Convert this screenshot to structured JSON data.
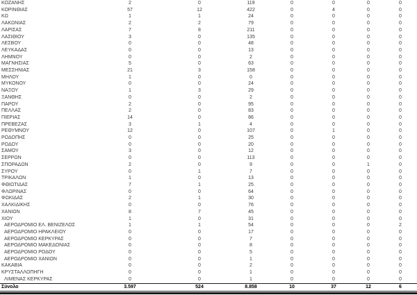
{
  "colors": {
    "background": "#ffffff",
    "text": "#3a3a3a",
    "total_text": "#000000",
    "rule": "#1a1a1a"
  },
  "table": {
    "rows": [
      {
        "name": "ΚΟΖΑΝΗΣ",
        "indent": false,
        "values": [
          "2",
          "0",
          "119",
          "0",
          "0",
          "0",
          "0"
        ]
      },
      {
        "name": "ΚΟΡΙΝΘΙΑΣ",
        "indent": false,
        "values": [
          "57",
          "12",
          "422",
          "0",
          "4",
          "0",
          "0"
        ]
      },
      {
        "name": "ΚΩ",
        "indent": false,
        "values": [
          "1",
          "1",
          "24",
          "0",
          "0",
          "0",
          "0"
        ]
      },
      {
        "name": "ΛΑΚΩΝΙΑΣ",
        "indent": false,
        "values": [
          "2",
          "2",
          "79",
          "0",
          "0",
          "0",
          "0"
        ]
      },
      {
        "name": "ΛΑΡΙΣΑΣ",
        "indent": false,
        "values": [
          "7",
          "8",
          "211",
          "0",
          "0",
          "0",
          "0"
        ]
      },
      {
        "name": "ΛΑΣΙΘΙΟΥ",
        "indent": false,
        "values": [
          "3",
          "0",
          "135",
          "0",
          "0",
          "0",
          "0"
        ]
      },
      {
        "name": "ΛΕΣΒΟΥ",
        "indent": false,
        "values": [
          "0",
          "0",
          "48",
          "0",
          "0",
          "0",
          "0"
        ]
      },
      {
        "name": "ΛΕΥΚΑΔΑΣ",
        "indent": false,
        "values": [
          "0",
          "0",
          "13",
          "0",
          "0",
          "0",
          "0"
        ]
      },
      {
        "name": "ΛΗΜΝΟΥ",
        "indent": false,
        "values": [
          "0",
          "0",
          "2",
          "0",
          "0",
          "0",
          "0"
        ]
      },
      {
        "name": "ΜΑΓΝΗΣΙΑΣ",
        "indent": false,
        "values": [
          "5",
          "0",
          "63",
          "0",
          "0",
          "0",
          "0"
        ]
      },
      {
        "name": "ΜΕΣΣΗΝΙΑΣ",
        "indent": false,
        "values": [
          "21",
          "3",
          "158",
          "0",
          "0",
          "0",
          "0"
        ]
      },
      {
        "name": "ΜΗΛΟΥ",
        "indent": false,
        "values": [
          "1",
          "0",
          "0",
          "0",
          "0",
          "0",
          "0"
        ]
      },
      {
        "name": "ΜΥΚΟΝΟΥ",
        "indent": false,
        "values": [
          "0",
          "0",
          "24",
          "0",
          "0",
          "0",
          "0"
        ]
      },
      {
        "name": "ΝΑΞΟΥ",
        "indent": false,
        "values": [
          "1",
          "3",
          "29",
          "0",
          "0",
          "0",
          "0"
        ]
      },
      {
        "name": "ΞΑΝΘΗΣ",
        "indent": false,
        "values": [
          "0",
          "0",
          "2",
          "0",
          "0",
          "0",
          "0"
        ]
      },
      {
        "name": "ΠΑΡΟΥ",
        "indent": false,
        "values": [
          "2",
          "0",
          "95",
          "0",
          "0",
          "0",
          "0"
        ]
      },
      {
        "name": "ΠΕΛΛΑΣ",
        "indent": false,
        "values": [
          "2",
          "0",
          "83",
          "0",
          "0",
          "0",
          "0"
        ]
      },
      {
        "name": "ΠΙΕΡΙΑΣ",
        "indent": false,
        "values": [
          "14",
          "0",
          "86",
          "0",
          "0",
          "0",
          "0"
        ]
      },
      {
        "name": "ΠΡΕΒΕΖΑΣ",
        "indent": false,
        "values": [
          "3",
          "1",
          "4",
          "0",
          "0",
          "0",
          "0"
        ]
      },
      {
        "name": "ΡΕΘΥΜΝΟΥ",
        "indent": false,
        "values": [
          "12",
          "0",
          "107",
          "0",
          "1",
          "0",
          "0"
        ]
      },
      {
        "name": "ΡΟΔΟΠΗΣ",
        "indent": false,
        "values": [
          "0",
          "0",
          "25",
          "0",
          "0",
          "0",
          "0"
        ]
      },
      {
        "name": "ΡΟΔΟΥ",
        "indent": false,
        "values": [
          "0",
          "0",
          "20",
          "0",
          "0",
          "0",
          "0"
        ]
      },
      {
        "name": "ΣΑΜΟΥ",
        "indent": false,
        "values": [
          "3",
          "0",
          "12",
          "0",
          "0",
          "0",
          "0"
        ]
      },
      {
        "name": "ΣΕΡΡΩΝ",
        "indent": false,
        "values": [
          "0",
          "0",
          "113",
          "0",
          "0",
          "0",
          "0"
        ]
      },
      {
        "name": "ΣΠΟΡΑΔΩΝ",
        "indent": false,
        "values": [
          "2",
          "0",
          "9",
          "0",
          "0",
          "1",
          "0"
        ]
      },
      {
        "name": "ΣΥΡΟΥ",
        "indent": false,
        "values": [
          "0",
          "1",
          "7",
          "0",
          "0",
          "0",
          "0"
        ]
      },
      {
        "name": "ΤΡΙΚΑΛΩΝ",
        "indent": false,
        "values": [
          "1",
          "0",
          "13",
          "0",
          "0",
          "0",
          "0"
        ]
      },
      {
        "name": "ΦΘΙΩΤΙΔΑΣ",
        "indent": false,
        "values": [
          "7",
          "1",
          "25",
          "0",
          "0",
          "0",
          "0"
        ]
      },
      {
        "name": "ΦΛΩΡΙΝΑΣ",
        "indent": false,
        "values": [
          "0",
          "0",
          "64",
          "0",
          "0",
          "0",
          "0"
        ]
      },
      {
        "name": "ΦΩΚΙΔΑΣ",
        "indent": false,
        "values": [
          "2",
          "1",
          "30",
          "0",
          "0",
          "0",
          "0"
        ]
      },
      {
        "name": "ΧΑΛΚΙΔΙΚΗΣ",
        "indent": false,
        "values": [
          "0",
          "0",
          "76",
          "0",
          "0",
          "0",
          "0"
        ]
      },
      {
        "name": "ΧΑΝΙΩΝ",
        "indent": false,
        "values": [
          "8",
          "7",
          "45",
          "0",
          "0",
          "0",
          "0"
        ]
      },
      {
        "name": "ΧΙΟΥ",
        "indent": false,
        "values": [
          "1",
          "0",
          "31",
          "0",
          "0",
          "0",
          "0"
        ]
      },
      {
        "name": "ΑΕΡΟΔΡΟΜΙΟ ΕΛ. ΒΕΝΙΖΕΛΟΣ",
        "indent": true,
        "values": [
          "1",
          "1",
          "54",
          "0",
          "0",
          "0",
          "2"
        ]
      },
      {
        "name": "ΑΕΡΟΔΡΟΜΙΟ ΗΡΑΚΛΕΙΟΥ",
        "indent": true,
        "values": [
          "0",
          "0",
          "17",
          "0",
          "0",
          "0",
          "0"
        ]
      },
      {
        "name": "ΑΕΡΟΔΡΟΜΙΟ ΚΕΡΚΥΡΑΣ",
        "indent": true,
        "values": [
          "0",
          "0",
          "7",
          "0",
          "0",
          "0",
          "0"
        ]
      },
      {
        "name": "ΑΕΡΟΔΡΟΜΙΟ ΜΑΚΕΔΟΝΙΑΣ",
        "indent": true,
        "values": [
          "0",
          "0",
          "8",
          "0",
          "0",
          "0",
          "0"
        ]
      },
      {
        "name": "ΑΕΡΟΔΡΟΜΙΟ ΡΟΔΟΥ",
        "indent": true,
        "values": [
          "0",
          "0",
          "5",
          "0",
          "0",
          "0",
          "0"
        ]
      },
      {
        "name": "ΑΕΡΟΔΡΟΜΙΟ ΧΑΝΙΩΝ",
        "indent": true,
        "values": [
          "0",
          "0",
          "1",
          "0",
          "0",
          "0",
          "0"
        ]
      },
      {
        "name": "ΚΑΚΑΒΙΑ",
        "indent": false,
        "values": [
          "0",
          "0",
          "2",
          "0",
          "0",
          "0",
          "0"
        ]
      },
      {
        "name": "ΚΡΥΣΤΑΛΛΟΠΗΓΗ",
        "indent": false,
        "values": [
          "0",
          "0",
          "1",
          "0",
          "0",
          "0",
          "0"
        ]
      },
      {
        "name": "ΛΙΜΕΝΑΣ ΚΕΡΚΥΡΑΣ",
        "indent": true,
        "values": [
          "0",
          "0",
          "1",
          "0",
          "0",
          "0",
          "0"
        ]
      }
    ],
    "total": {
      "label": "Σύνολο",
      "values": [
        "3.597",
        "524",
        "8.858",
        "10",
        "37",
        "12",
        "6"
      ]
    }
  }
}
